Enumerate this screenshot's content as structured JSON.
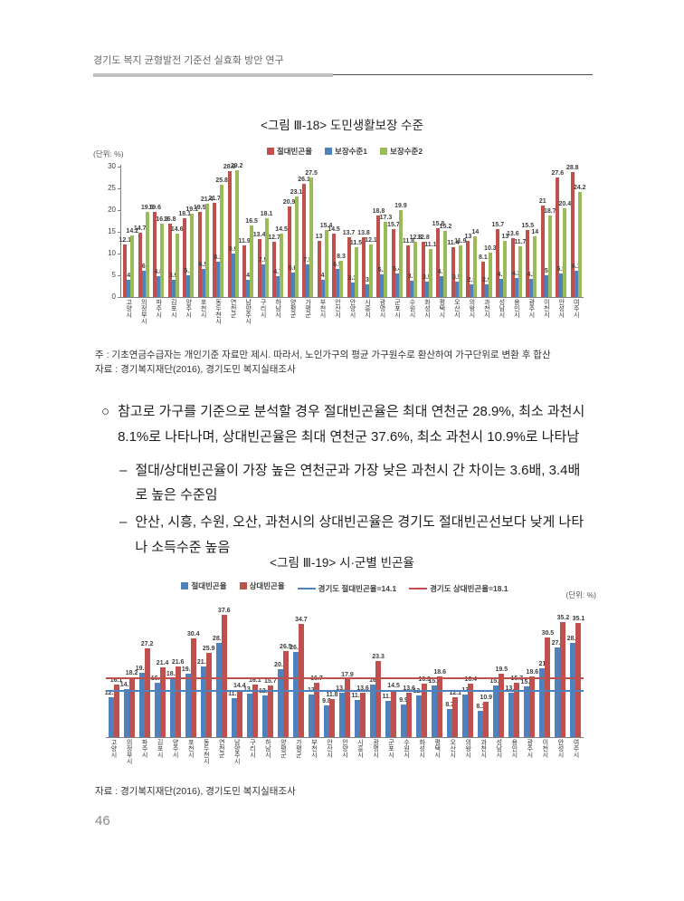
{
  "page": {
    "header": "경기도 복지 균형발전 기준선 실효화 방안 연구",
    "page_number": "46"
  },
  "figure18": {
    "title": "<그림 Ⅲ-18> 도민생활보장 수준",
    "unit_label": "(단위: %)",
    "note": "주 : 기초연금수급자는 개인기준 자료만 제시. 따라서, 노인가구의 평균 가구원수로 환산하여 가구단위로  변환 후 합산",
    "source": "자료 : 경기복지재단(2016), 경기도민 복지실태조사"
  },
  "body": {
    "items": [
      {
        "marker": "○",
        "text": "참고로 가구를 기준으로 분석할 경우 절대빈곤율은 최대 연천군 28.9%, 최소 과천시 8.1%로 나타나며, 상대빈곤율은 최대 연천군 37.6%, 최소 과천시 10.9%로 나타남"
      },
      {
        "marker": "–",
        "text": "절대/상대빈곤율이 가장 높은 연천군과 가장 낮은 과천시 간 차이는 3.6배, 3.4배로 높은 수준임"
      },
      {
        "marker": "–",
        "text": "안산, 시흥, 수원, 오산, 과천시의 상대빈곤율은 경기도 절대빈곤선보다 낮게 나타나 소득수준 높음"
      }
    ]
  },
  "figure19": {
    "title": "<그림 Ⅲ-19> 시·군별 빈곤율",
    "unit_label": "(단위: %)",
    "source": "자료 : 경기복지재단(2016), 경기도민 복지실태조사"
  },
  "chart_data": [
    {
      "type": "bar",
      "title": "<그림 Ⅲ-18> 도민생활보장 수준",
      "ylabel": "%",
      "ylim": [
        0,
        30
      ],
      "yticks": [
        0,
        5,
        10,
        15,
        20,
        25,
        30
      ],
      "grid": false,
      "legend_position": "top",
      "categories": [
        "고양시",
        "의정부시",
        "파주시",
        "김포시",
        "양주시",
        "포천시",
        "동두천시",
        "연천군",
        "남양주시",
        "구리시",
        "하남시",
        "양평군",
        "가평군",
        "부천시",
        "안산시",
        "안양시",
        "시흥시",
        "광명시",
        "군포시",
        "수원시",
        "화성시",
        "평택시",
        "오산시",
        "의왕시",
        "과천시",
        "성남시",
        "용인시",
        "광주시",
        "이천시",
        "안성시",
        "여주시"
      ],
      "series": [
        {
          "name": "절대빈곤율",
          "color": "#C0504D",
          "values": [
            12.1,
            14.7,
            19.6,
            16.8,
            18.1,
            19.5,
            21.7,
            28.9,
            11.9,
            13.4,
            12.7,
            20.9,
            26.1,
            13,
            14.5,
            13.7,
            13.8,
            18.8,
            15.7,
            11.8,
            12.8,
            15.8,
            11.4,
            13,
            8.1,
            15.7,
            13.6,
            15.5,
            21,
            27.6,
            28.8
          ]
        },
        {
          "name": "보장수준1",
          "color": "#4F81BD",
          "values": [
            4.0,
            6.0,
            4.8,
            3.9,
            5.1,
            6.5,
            8.2,
            9.9,
            4.0,
            7.5,
            4.7,
            5.6,
            7.5,
            4.0,
            6.5,
            3.3,
            3.0,
            5.2,
            5.4,
            3.7,
            3.5,
            4.7,
            3.5,
            2.9,
            2.9,
            4.1,
            4.3,
            4.2,
            5.0,
            5.5,
            6.1
          ]
        },
        {
          "name": "보장수준2",
          "color": "#9BBB59",
          "values": [
            14.2,
            19.6,
            16.8,
            14.6,
            19.1,
            21.4,
            25.8,
            29.2,
            16.5,
            18.1,
            14.5,
            23.1,
            27.5,
            15.4,
            8.3,
            11.5,
            12.1,
            17.3,
            19.9,
            12.8,
            11.1,
            15.2,
            11.9,
            14.0,
            10.3,
            13.0,
            11.7,
            14.0,
            18.7,
            20.4,
            24.2
          ]
        }
      ]
    },
    {
      "type": "bar",
      "title": "<그림 Ⅲ-19> 시·군별 빈곤율",
      "ylabel": "%",
      "ylim": [
        0,
        40
      ],
      "grid": false,
      "legend_position": "top",
      "categories": [
        "고양시",
        "의정부시",
        "파주시",
        "김포시",
        "양주시",
        "포천시",
        "동두천시",
        "연천군",
        "남양주시",
        "구리시",
        "하남시",
        "양평군",
        "가평군",
        "부천시",
        "안산시",
        "안양시",
        "시흥시",
        "광명시",
        "군포시",
        "수원시",
        "화성시",
        "평택시",
        "오산시",
        "의왕시",
        "과천시",
        "성남시",
        "용인시",
        "광주시",
        "이천시",
        "안성시",
        "여주시"
      ],
      "series": [
        {
          "name": "절대빈곤율",
          "color": "#4F81BD",
          "values": [
            12.1,
            14.7,
            19.6,
            16.8,
            18.1,
            19.5,
            21.7,
            28.9,
            11.9,
            13.4,
            12.7,
            20.9,
            26.1,
            13,
            9.8,
            13.7,
            11.5,
            16.0,
            11.2,
            9.9,
            12.8,
            15.8,
            8.7,
            13,
            8.1,
            15.7,
            13.5,
            15.6,
            21,
            27.6,
            28.8
          ]
        },
        {
          "name": "상대빈곤율",
          "color": "#C0504D",
          "values": [
            16.1,
            18.2,
            27.2,
            21.4,
            21.6,
            30.4,
            25.9,
            37.6,
            14.4,
            16.1,
            15.7,
            26.5,
            34.7,
            16.7,
            11.8,
            17.9,
            13.6,
            23.3,
            14.5,
            13.6,
            16.3,
            18.6,
            12.1,
            16.4,
            10.9,
            19.5,
            16.7,
            18.6,
            30.5,
            35.2,
            35.1
          ]
        }
      ],
      "reference_lines": [
        {
          "name": "경기도 절대빈곤율=14.1",
          "value": 14.1,
          "color": "#4F81BD"
        },
        {
          "name": "경기도 상대빈곤율=18.1",
          "value": 18.1,
          "color": "#C0504D"
        }
      ]
    }
  ]
}
